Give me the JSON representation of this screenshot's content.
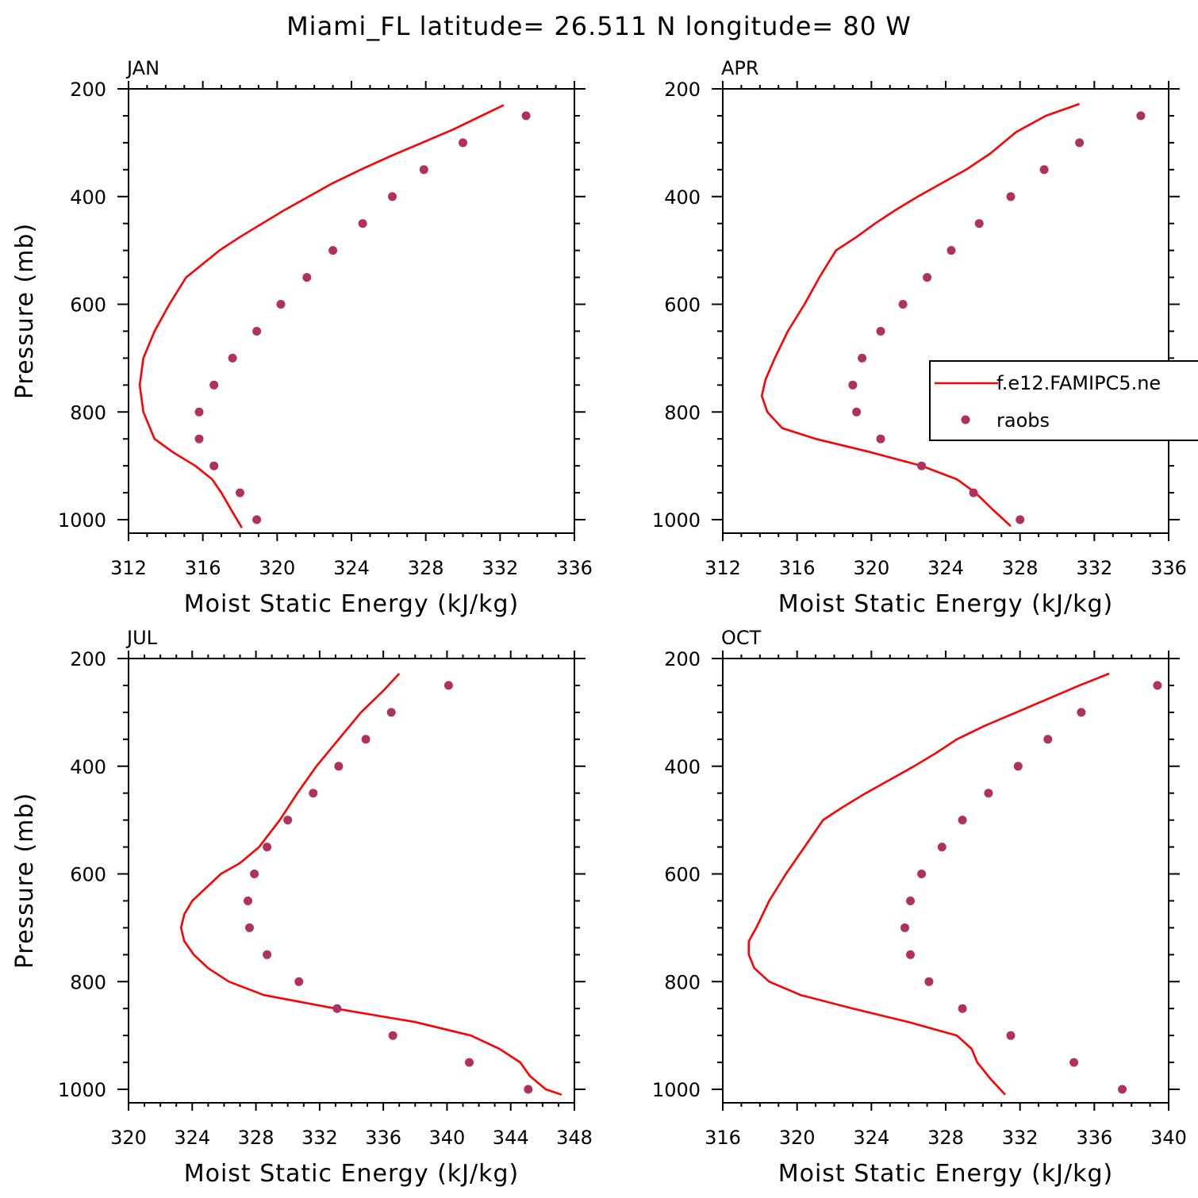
{
  "title": "Miami_FL  latitude= 26.511 N longitude= 80 W",
  "colors": {
    "model": "#ff0000",
    "obs": "#b03060",
    "axis": "#000000"
  },
  "legend": {
    "model_label": "f.e12.FAMIPC5.ne",
    "obs_label": "raobs"
  },
  "chart_data": [
    {
      "type": "line",
      "panel": "JAN",
      "xlabel": "Moist Static Energy (kJ/kg)",
      "ylabel": "Pressure (mb)",
      "xlim": [
        312,
        336
      ],
      "xticks": [
        312,
        316,
        320,
        324,
        328,
        332,
        336
      ],
      "ylim": [
        200,
        1025
      ],
      "yticks": [
        200,
        400,
        600,
        800,
        1000
      ],
      "y_inverted": true,
      "series": [
        {
          "kind": "line",
          "x": [
            332.2,
            331.0,
            329.5,
            327.8,
            326.1,
            324.5,
            323.0,
            321.7,
            320.4,
            319.2,
            318.0,
            316.9,
            316.0,
            315.1,
            314.2,
            313.4,
            312.8,
            312.6,
            312.8,
            313.4,
            314.4,
            315.6,
            316.5,
            317.0,
            317.5,
            318.1
          ],
          "y": [
            230,
            250,
            275,
            300,
            325,
            350,
            375,
            400,
            425,
            450,
            475,
            500,
            525,
            550,
            600,
            650,
            700,
            750,
            800,
            850,
            875,
            900,
            925,
            950,
            980,
            1015
          ]
        },
        {
          "kind": "points",
          "x": [
            333.4,
            330.0,
            327.9,
            326.2,
            324.6,
            323.0,
            321.6,
            320.2,
            318.9,
            317.6,
            316.6,
            315.8,
            315.8,
            316.6,
            318.0,
            318.9
          ],
          "y": [
            250,
            300,
            350,
            400,
            450,
            500,
            550,
            600,
            650,
            700,
            750,
            800,
            850,
            900,
            950,
            1000
          ]
        }
      ]
    },
    {
      "type": "line",
      "panel": "APR",
      "xlabel": "Moist Static Energy (kJ/kg)",
      "ylabel": "",
      "xlim": [
        312,
        336
      ],
      "xticks": [
        312,
        316,
        320,
        324,
        328,
        332,
        336
      ],
      "ylim": [
        200,
        1025
      ],
      "yticks": [
        200,
        400,
        600,
        800,
        1000
      ],
      "y_inverted": true,
      "series": [
        {
          "kind": "line",
          "x": [
            331.2,
            329.4,
            327.8,
            326.4,
            325.1,
            323.8,
            322.5,
            321.3,
            320.2,
            319.2,
            318.1,
            317.2,
            316.4,
            315.5,
            314.8,
            314.3,
            314.1,
            314.4,
            315.2,
            317.0,
            320.0,
            322.7,
            324.6,
            325.6,
            326.5,
            327.5
          ],
          "y": [
            228,
            250,
            280,
            320,
            350,
            375,
            400,
            425,
            450,
            475,
            500,
            550,
            600,
            650,
            700,
            740,
            770,
            800,
            830,
            850,
            875,
            900,
            925,
            950,
            980,
            1012
          ]
        },
        {
          "kind": "points",
          "x": [
            334.5,
            331.2,
            329.3,
            327.5,
            325.8,
            324.3,
            323.0,
            321.7,
            320.5,
            319.5,
            319.0,
            319.2,
            320.5,
            322.7,
            325.5,
            328.0
          ],
          "y": [
            250,
            300,
            350,
            400,
            450,
            500,
            550,
            600,
            650,
            700,
            750,
            800,
            850,
            900,
            950,
            1000
          ]
        }
      ]
    },
    {
      "type": "line",
      "panel": "JUL",
      "xlabel": "Moist Static Energy (kJ/kg)",
      "ylabel": "Pressure (mb)",
      "xlim": [
        320,
        348
      ],
      "xticks": [
        320,
        324,
        328,
        332,
        336,
        340,
        344,
        348
      ],
      "ylim": [
        200,
        1025
      ],
      "yticks": [
        200,
        400,
        600,
        800,
        1000
      ],
      "y_inverted": true,
      "series": [
        {
          "kind": "line",
          "x": [
            337.0,
            336.0,
            334.6,
            333.2,
            331.8,
            330.6,
            329.5,
            328.2,
            327.0,
            325.8,
            324.9,
            324.0,
            323.5,
            323.3,
            323.5,
            324.1,
            325.0,
            326.3,
            328.5,
            333.0,
            338.0,
            341.5,
            343.3,
            344.6,
            345.2,
            346.2,
            347.2
          ],
          "y": [
            228,
            260,
            300,
            350,
            400,
            450,
            500,
            550,
            580,
            600,
            625,
            650,
            675,
            700,
            725,
            750,
            775,
            800,
            825,
            850,
            875,
            900,
            925,
            950,
            975,
            1000,
            1010
          ]
        },
        {
          "kind": "points",
          "x": [
            340.1,
            336.5,
            334.9,
            333.2,
            331.6,
            330.0,
            328.7,
            327.9,
            327.5,
            327.6,
            328.7,
            330.7,
            333.1,
            336.6,
            341.4,
            345.1
          ],
          "y": [
            250,
            300,
            350,
            400,
            450,
            500,
            550,
            600,
            650,
            700,
            750,
            800,
            850,
            900,
            950,
            1000
          ]
        }
      ]
    },
    {
      "type": "line",
      "panel": "OCT",
      "xlabel": "Moist Static Energy (kJ/kg)",
      "ylabel": "",
      "xlim": [
        316,
        340
      ],
      "xticks": [
        316,
        320,
        324,
        328,
        332,
        336,
        340
      ],
      "ylim": [
        200,
        1025
      ],
      "yticks": [
        200,
        400,
        600,
        800,
        1000
      ],
      "y_inverted": true,
      "series": [
        {
          "kind": "line",
          "x": [
            336.8,
            335.2,
            333.5,
            331.8,
            330.1,
            328.6,
            327.5,
            326.3,
            325.0,
            323.7,
            322.5,
            321.4,
            320.4,
            319.4,
            318.5,
            317.8,
            317.4,
            317.4,
            317.7,
            318.5,
            320.2,
            323.0,
            326.0,
            328.6,
            329.4,
            329.7,
            330.4,
            331.2
          ],
          "y": [
            228,
            250,
            275,
            300,
            325,
            350,
            375,
            400,
            425,
            450,
            475,
            500,
            550,
            600,
            650,
            700,
            725,
            750,
            775,
            800,
            825,
            850,
            875,
            900,
            925,
            950,
            980,
            1010
          ]
        },
        {
          "kind": "points",
          "x": [
            339.4,
            335.3,
            333.5,
            331.9,
            330.3,
            328.9,
            327.8,
            326.7,
            326.1,
            325.8,
            326.1,
            327.1,
            328.9,
            331.5,
            334.9,
            337.5
          ],
          "y": [
            250,
            300,
            350,
            400,
            450,
            500,
            550,
            600,
            650,
            700,
            750,
            800,
            850,
            900,
            950,
            1000
          ]
        }
      ]
    }
  ]
}
